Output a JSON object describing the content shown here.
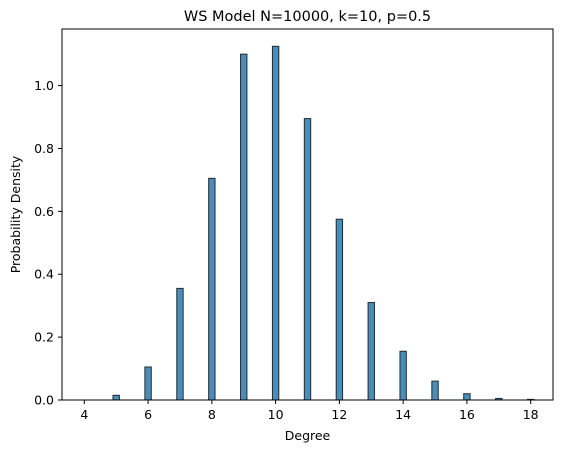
{
  "chart_data": {
    "type": "bar",
    "title": "WS Model N=10000, k=10, p=0.5",
    "xlabel": "Degree",
    "ylabel": "Probability Density",
    "xlim": [
      3.3,
      18.7
    ],
    "ylim": [
      0.0,
      1.18
    ],
    "xticks": [
      "4",
      "6",
      "8",
      "10",
      "12",
      "14",
      "16",
      "18"
    ],
    "yticks": [
      "0.0",
      "0.2",
      "0.4",
      "0.6",
      "0.8",
      "1.0"
    ],
    "bar_width": 0.2,
    "x": [
      4,
      5,
      6,
      7,
      8,
      9,
      10,
      11,
      12,
      13,
      14,
      15,
      16,
      17,
      18
    ],
    "values": [
      0.0,
      0.015,
      0.105,
      0.355,
      0.705,
      1.1,
      1.125,
      0.895,
      0.575,
      0.31,
      0.155,
      0.06,
      0.02,
      0.005,
      0.002
    ],
    "grid": false,
    "bar_color": "#4c8db8",
    "edge_color": "#1f2a33"
  }
}
